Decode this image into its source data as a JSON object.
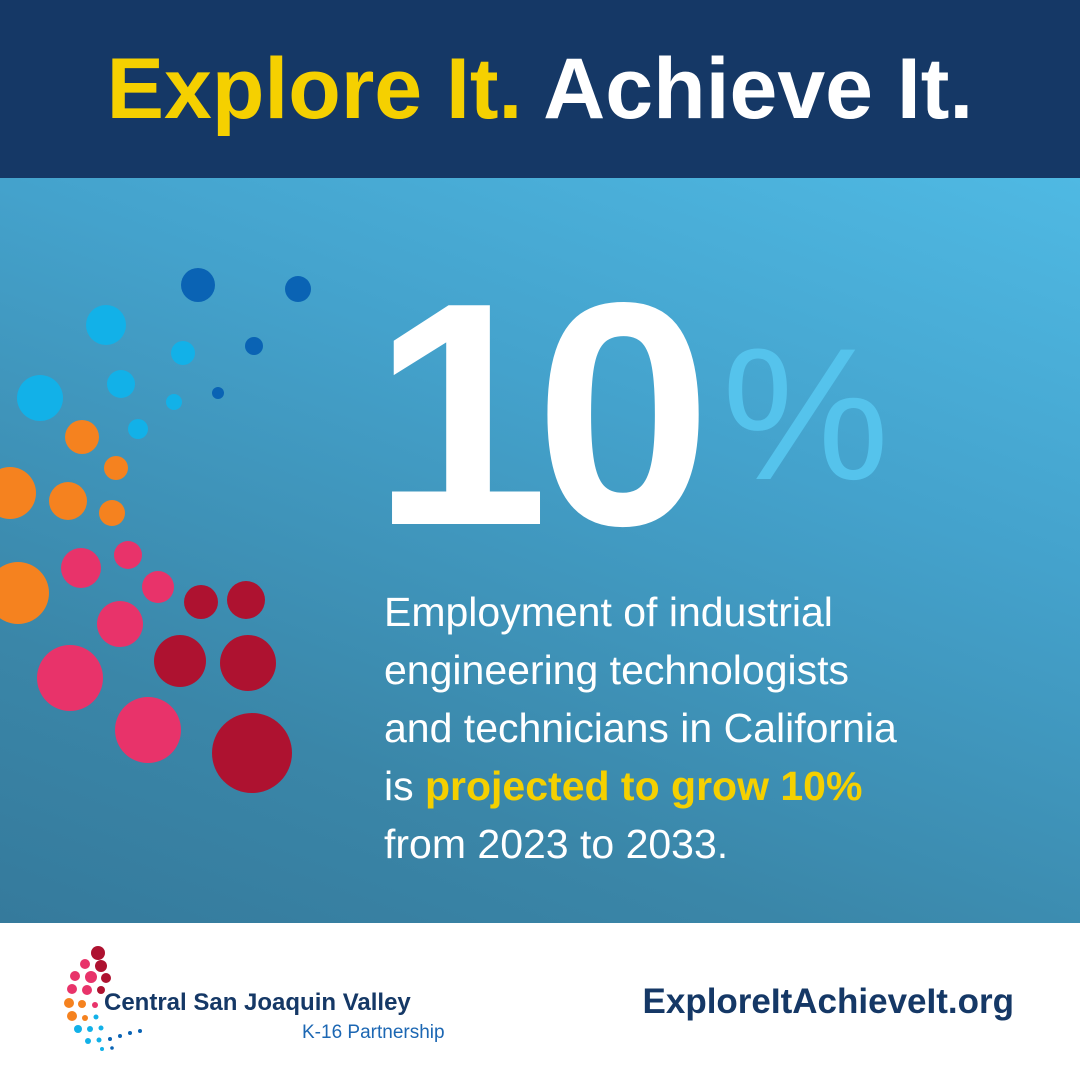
{
  "header": {
    "title_part1": "Explore It.",
    "title_part2": "Achieve It."
  },
  "stat": {
    "number": "10",
    "unit": "%"
  },
  "description": {
    "line1": "Employment of industrial",
    "line2": "engineering technologists",
    "line3": "and technicians in California",
    "line4_prefix": "is ",
    "line4_highlight": "projected to grow 10%",
    "line5": "from 2023 to 2033."
  },
  "footer": {
    "org_name": "Central San Joaquin Valley",
    "org_subtitle": "K-16 Partnership",
    "website": "ExploreItAchieveIt.org"
  },
  "colors": {
    "header_bg": "#153866",
    "accent_yellow": "#f5d000",
    "panel_light": "#4fb9e3",
    "panel_dark": "#357a9c",
    "dot_light_blue": "#12b1e8",
    "dot_dark_blue": "#0a63b4",
    "dot_orange": "#f5821f",
    "dot_pink": "#e8336a",
    "dot_crimson": "#ae1230"
  }
}
